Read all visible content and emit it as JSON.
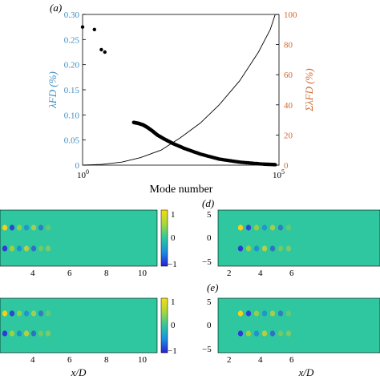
{
  "colors": {
    "left_axis": "#3a8dc4",
    "right_axis": "#d0672f",
    "field": "#2ec7a0",
    "mode_pos": "#f2d11a",
    "mode_neg": "#2e3bd6",
    "mode_pos2": "#a8d233",
    "mode_neg2": "#1a83d9"
  },
  "icons": {
    "scatter_marker": "filled-circle"
  },
  "chart_data": [
    {
      "type": "scatter",
      "panel_label": "(a)",
      "xlabel": "Mode number",
      "ylabel_left": "λFD (%)",
      "ylabel_right": "ΣλFD (%)",
      "x_scale": "log",
      "xlim": [
        1,
        100000
      ],
      "x_ticks": [
        "10",
        "10"
      ],
      "x_tick_exponents": [
        "0",
        "5"
      ],
      "ylim_left": [
        0,
        0.3
      ],
      "y_ticks_left": [
        "0",
        "0.05",
        "0.10",
        "0.15",
        "0.20",
        "0.25",
        "0.30"
      ],
      "ylim_right": [
        0,
        100
      ],
      "y_ticks_right": [
        "0",
        "20",
        "40",
        "60",
        "80",
        "100"
      ],
      "grid": false,
      "series": [
        {
          "kind": "scatter",
          "axis": "left",
          "x": [
            1,
            2,
            3,
            3.7,
            20,
            27,
            35,
            45,
            60,
            80,
            120,
            200,
            400,
            1000,
            3000,
            10000,
            40000,
            80000
          ],
          "y": [
            0.275,
            0.27,
            0.23,
            0.225,
            0.085,
            0.083,
            0.08,
            0.075,
            0.068,
            0.06,
            0.052,
            0.043,
            0.033,
            0.022,
            0.012,
            0.006,
            0.002,
            0.001
          ]
        },
        {
          "kind": "line",
          "axis": "right",
          "x": [
            1,
            3,
            10,
            30,
            100,
            300,
            1000,
            3000,
            10000,
            30000,
            60000,
            80000
          ],
          "y": [
            0,
            0.5,
            2,
            5,
            10,
            18,
            28,
            40,
            56,
            75,
            90,
            100
          ]
        }
      ]
    },
    {
      "type": "heatmap",
      "panel_label": "",
      "xlabel": "",
      "x_ticks": [
        "4",
        "6",
        "8",
        "10"
      ],
      "y_ticks": [],
      "colorbar_ticks": [
        "1",
        "0",
        "−1"
      ],
      "clim": [
        -1,
        1
      ]
    },
    {
      "type": "heatmap",
      "panel_label": "(d)",
      "xlabel": "",
      "x_ticks": [
        "2",
        "4",
        "6"
      ],
      "y_ticks": [
        "5",
        "0",
        "−5"
      ]
    },
    {
      "type": "heatmap",
      "panel_label": "",
      "xlabel": "x/D",
      "x_ticks": [
        "4",
        "6",
        "8",
        "10"
      ],
      "y_ticks": [],
      "colorbar_ticks": [
        "1",
        "0",
        "−1"
      ],
      "clim": [
        -1,
        1
      ]
    },
    {
      "type": "heatmap",
      "panel_label": "(e)",
      "xlabel": "x/D",
      "x_ticks": [
        "2",
        "4",
        "6"
      ],
      "y_ticks": [
        "5",
        "0",
        "−5"
      ]
    }
  ]
}
